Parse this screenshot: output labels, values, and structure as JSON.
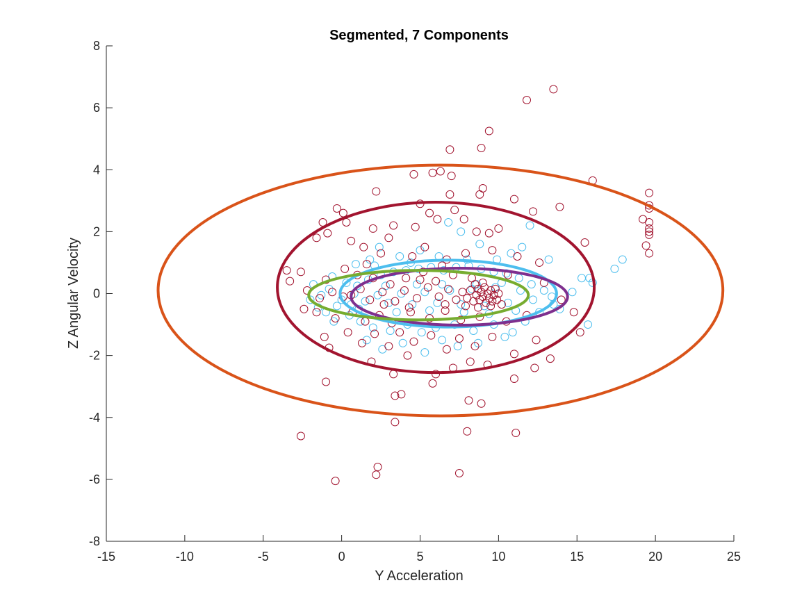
{
  "chart_data": {
    "type": "scatter",
    "title": "Segmented, 7 Components",
    "xlabel": "Y Acceleration",
    "ylabel": "Z Angular Velocity",
    "xlim": [
      -15,
      25
    ],
    "ylim": [
      -8,
      8
    ],
    "xticks": [
      -15,
      -10,
      -5,
      0,
      5,
      10,
      15,
      20,
      25
    ],
    "yticks": [
      -8,
      -6,
      -4,
      -2,
      0,
      2,
      4,
      6,
      8
    ],
    "grid": false,
    "colors": {
      "axis": "#262626",
      "points_dark": "#A2142F",
      "points_light": "#4DBEEE",
      "ellipse_orange": "#D95319",
      "ellipse_crimson": "#A2142F",
      "ellipse_blue": "#4DBEEE",
      "ellipse_purple": "#7E2F8E",
      "ellipse_green": "#77AC30"
    },
    "ellipses": [
      {
        "color": "#D95319",
        "cx": 6.3,
        "cy": 0.1,
        "rx": 18.0,
        "ry": 4.05
      },
      {
        "color": "#A2142F",
        "cx": 6.0,
        "cy": 0.2,
        "rx": 10.1,
        "ry": 2.75
      },
      {
        "color": "#4DBEEE",
        "cx": 6.8,
        "cy": 0.0,
        "rx": 6.9,
        "ry": 1.08
      },
      {
        "color": "#7E2F8E",
        "cx": 7.5,
        "cy": -0.1,
        "rx": 6.9,
        "ry": 0.92
      },
      {
        "color": "#77AC30",
        "cx": 4.9,
        "cy": -0.05,
        "rx": 7.0,
        "ry": 0.8
      }
    ],
    "series": [
      {
        "color": "#A2142F",
        "points": [
          [
            13.5,
            6.6
          ],
          [
            11.8,
            6.25
          ],
          [
            9.4,
            5.25
          ],
          [
            6.9,
            4.65
          ],
          [
            8.9,
            4.7
          ],
          [
            16.0,
            3.65
          ],
          [
            4.6,
            3.85
          ],
          [
            5.8,
            3.9
          ],
          [
            6.3,
            3.95
          ],
          [
            7.0,
            3.8
          ],
          [
            2.2,
            3.3
          ],
          [
            8.8,
            3.2
          ],
          [
            9.0,
            3.4
          ],
          [
            6.9,
            3.2
          ],
          [
            19.6,
            3.25
          ],
          [
            19.6,
            2.85
          ],
          [
            19.6,
            2.75
          ],
          [
            19.6,
            2.3
          ],
          [
            19.6,
            2.1
          ],
          [
            19.6,
            2.0
          ],
          [
            19.6,
            1.9
          ],
          [
            19.6,
            1.3
          ],
          [
            19.4,
            1.55
          ],
          [
            19.2,
            2.4
          ],
          [
            13.9,
            2.8
          ],
          [
            12.2,
            2.65
          ],
          [
            11.0,
            3.05
          ],
          [
            5.0,
            2.9
          ],
          [
            5.6,
            2.6
          ],
          [
            -0.3,
            2.75
          ],
          [
            0.1,
            2.6
          ],
          [
            0.3,
            2.3
          ],
          [
            -1.2,
            2.3
          ],
          [
            -0.9,
            1.95
          ],
          [
            2.0,
            2.1
          ],
          [
            3.3,
            2.2
          ],
          [
            4.7,
            2.15
          ],
          [
            6.1,
            2.4
          ],
          [
            7.2,
            2.7
          ],
          [
            7.8,
            2.4
          ],
          [
            8.6,
            2.0
          ],
          [
            9.4,
            1.95
          ],
          [
            10.0,
            2.1
          ],
          [
            15.5,
            1.65
          ],
          [
            -1.6,
            1.8
          ],
          [
            0.6,
            1.7
          ],
          [
            1.4,
            1.5
          ],
          [
            2.5,
            1.3
          ],
          [
            3.0,
            1.8
          ],
          [
            4.5,
            1.2
          ],
          [
            5.3,
            1.5
          ],
          [
            6.7,
            1.1
          ],
          [
            7.9,
            1.3
          ],
          [
            9.6,
            1.4
          ],
          [
            11.2,
            1.2
          ],
          [
            12.6,
            1.0
          ],
          [
            -3.5,
            0.75
          ],
          [
            -2.6,
            0.7
          ],
          [
            -3.3,
            0.4
          ],
          [
            -1.0,
            0.45
          ],
          [
            0.2,
            0.8
          ],
          [
            1.0,
            0.6
          ],
          [
            2.0,
            0.5
          ],
          [
            3.1,
            0.3
          ],
          [
            4.1,
            0.5
          ],
          [
            5.2,
            0.7
          ],
          [
            6.0,
            0.4
          ],
          [
            7.1,
            0.6
          ],
          [
            8.3,
            0.5
          ],
          [
            10.6,
            0.6
          ],
          [
            12.9,
            0.35
          ],
          [
            14.0,
            -0.2
          ],
          [
            14.8,
            -0.6
          ],
          [
            15.2,
            -1.25
          ],
          [
            -2.2,
            0.1
          ],
          [
            -1.4,
            -0.15
          ],
          [
            -0.6,
            0.05
          ],
          [
            0.1,
            -0.1
          ],
          [
            0.6,
            -0.05
          ],
          [
            1.2,
            0.15
          ],
          [
            1.8,
            -0.2
          ],
          [
            2.6,
            0.05
          ],
          [
            3.4,
            -0.25
          ],
          [
            4.0,
            0.1
          ],
          [
            4.8,
            -0.15
          ],
          [
            5.5,
            0.2
          ],
          [
            6.2,
            -0.1
          ],
          [
            6.8,
            0.15
          ],
          [
            7.3,
            -0.2
          ],
          [
            7.7,
            0.05
          ],
          [
            8.0,
            -0.15
          ],
          [
            8.2,
            0.1
          ],
          [
            8.4,
            -0.25
          ],
          [
            8.6,
            -0.05
          ],
          [
            8.7,
            0.15
          ],
          [
            8.8,
            -0.2
          ],
          [
            8.9,
            0.05
          ],
          [
            9.0,
            -0.1
          ],
          [
            9.1,
            0.2
          ],
          [
            9.2,
            -0.3
          ],
          [
            9.3,
            0.0
          ],
          [
            9.4,
            -0.15
          ],
          [
            9.5,
            0.1
          ],
          [
            9.6,
            -0.25
          ],
          [
            9.7,
            -0.05
          ],
          [
            9.8,
            0.15
          ],
          [
            9.9,
            -0.2
          ],
          [
            10.0,
            0.0
          ],
          [
            8.5,
            0.3
          ],
          [
            9.0,
            0.35
          ],
          [
            9.5,
            -0.4
          ],
          [
            8.7,
            -0.45
          ],
          [
            10.2,
            -0.35
          ],
          [
            7.9,
            -0.4
          ],
          [
            -2.4,
            -0.5
          ],
          [
            -1.6,
            -0.6
          ],
          [
            -0.4,
            -0.8
          ],
          [
            0.7,
            -0.6
          ],
          [
            1.5,
            -0.9
          ],
          [
            2.4,
            -0.7
          ],
          [
            3.2,
            -0.95
          ],
          [
            4.4,
            -0.6
          ],
          [
            5.6,
            -0.8
          ],
          [
            6.6,
            -0.55
          ],
          [
            7.6,
            -0.85
          ],
          [
            8.8,
            -0.75
          ],
          [
            10.5,
            -0.9
          ],
          [
            11.8,
            -0.7
          ],
          [
            -1.1,
            -1.4
          ],
          [
            -0.8,
            -1.75
          ],
          [
            0.4,
            -1.25
          ],
          [
            1.3,
            -1.6
          ],
          [
            2.1,
            -1.3
          ],
          [
            3.0,
            -1.7
          ],
          [
            3.7,
            -1.25
          ],
          [
            4.6,
            -1.55
          ],
          [
            5.7,
            -1.35
          ],
          [
            6.7,
            -1.8
          ],
          [
            7.5,
            -1.45
          ],
          [
            8.5,
            -1.7
          ],
          [
            9.6,
            -1.4
          ],
          [
            11.0,
            -1.95
          ],
          [
            12.4,
            -1.5
          ],
          [
            13.3,
            -2.1
          ],
          [
            1.9,
            -2.2
          ],
          [
            3.3,
            -2.6
          ],
          [
            4.2,
            -2.0
          ],
          [
            6.0,
            -2.6
          ],
          [
            7.1,
            -2.4
          ],
          [
            8.2,
            -2.2
          ],
          [
            9.3,
            -2.3
          ],
          [
            11.0,
            -2.75
          ],
          [
            12.3,
            -2.4
          ],
          [
            5.8,
            -2.9
          ],
          [
            -1.0,
            -2.85
          ],
          [
            3.4,
            -3.3
          ],
          [
            3.8,
            -3.25
          ],
          [
            8.1,
            -3.45
          ],
          [
            8.9,
            -3.55
          ],
          [
            3.4,
            -4.15
          ],
          [
            8.0,
            -4.45
          ],
          [
            11.1,
            -4.5
          ],
          [
            -2.6,
            -4.6
          ],
          [
            2.3,
            -5.6
          ],
          [
            2.2,
            -5.85
          ],
          [
            7.5,
            -5.8
          ],
          [
            -0.4,
            -6.05
          ],
          [
            1.6,
            0.95
          ],
          [
            6.4,
            0.9
          ],
          [
            2.7,
            -0.35
          ],
          [
            5.0,
            0.45
          ],
          [
            4.3,
            -0.45
          ],
          [
            6.6,
            -0.35
          ]
        ]
      },
      {
        "color": "#4DBEEE",
        "points": [
          [
            12.0,
            2.2
          ],
          [
            11.5,
            1.5
          ],
          [
            10.8,
            1.3
          ],
          [
            13.2,
            1.1
          ],
          [
            15.3,
            0.5
          ],
          [
            15.8,
            0.5
          ],
          [
            16.0,
            0.35
          ],
          [
            17.9,
            1.1
          ],
          [
            17.4,
            0.8
          ],
          [
            14.7,
            0.05
          ],
          [
            15.7,
            -1.0
          ],
          [
            13.9,
            -0.5
          ],
          [
            6.8,
            2.3
          ],
          [
            7.6,
            2.0
          ],
          [
            8.8,
            1.6
          ],
          [
            5.0,
            1.4
          ],
          [
            3.7,
            1.2
          ],
          [
            2.4,
            1.5
          ],
          [
            1.8,
            1.1
          ],
          [
            0.9,
            0.95
          ],
          [
            -0.6,
            0.55
          ],
          [
            -1.8,
            0.3
          ],
          [
            -2.0,
            -0.2
          ],
          [
            -1.5,
            -0.45
          ],
          [
            -1.0,
            -0.6
          ],
          [
            -0.3,
            -0.4
          ],
          [
            0.5,
            -0.7
          ],
          [
            1.2,
            -0.9
          ],
          [
            2.0,
            -1.1
          ],
          [
            3.1,
            -1.2
          ],
          [
            4.2,
            -1.0
          ],
          [
            5.1,
            -1.25
          ],
          [
            6.0,
            -1.1
          ],
          [
            7.2,
            -1.0
          ],
          [
            8.4,
            -1.2
          ],
          [
            9.7,
            -1.0
          ],
          [
            10.9,
            -1.25
          ],
          [
            11.7,
            -0.9
          ],
          [
            12.6,
            -0.6
          ],
          [
            13.5,
            -0.35
          ],
          [
            0.3,
            0.35
          ],
          [
            1.0,
            0.25
          ],
          [
            1.7,
            0.45
          ],
          [
            2.5,
            0.6
          ],
          [
            3.3,
            0.7
          ],
          [
            4.1,
            0.75
          ],
          [
            4.9,
            0.8
          ],
          [
            5.7,
            0.85
          ],
          [
            6.5,
            0.75
          ],
          [
            7.3,
            0.85
          ],
          [
            8.1,
            0.9
          ],
          [
            8.9,
            0.8
          ],
          [
            9.7,
            0.7
          ],
          [
            10.5,
            0.65
          ],
          [
            11.3,
            0.5
          ],
          [
            12.1,
            0.3
          ],
          [
            12.9,
            0.1
          ],
          [
            13.4,
            -0.1
          ],
          [
            -0.8,
            0.15
          ],
          [
            -1.3,
            -0.05
          ],
          [
            0.0,
            -0.2
          ],
          [
            0.8,
            0.0
          ],
          [
            1.5,
            -0.25
          ],
          [
            2.3,
            -0.05
          ],
          [
            3.0,
            -0.3
          ],
          [
            3.8,
            0.0
          ],
          [
            4.5,
            -0.35
          ],
          [
            5.3,
            0.05
          ],
          [
            6.1,
            -0.3
          ],
          [
            6.9,
            0.1
          ],
          [
            7.6,
            -0.35
          ],
          [
            8.3,
            0.15
          ],
          [
            9.1,
            -0.4
          ],
          [
            9.8,
            0.2
          ],
          [
            10.6,
            -0.3
          ],
          [
            11.4,
            0.1
          ],
          [
            12.2,
            -0.2
          ],
          [
            0.6,
            -0.35
          ],
          [
            2.8,
            0.25
          ],
          [
            4.8,
            0.3
          ],
          [
            6.4,
            0.3
          ],
          [
            8.6,
            0.3
          ],
          [
            10.2,
            0.35
          ],
          [
            1.1,
            -0.5
          ],
          [
            3.5,
            -0.6
          ],
          [
            5.6,
            -0.55
          ],
          [
            7.8,
            -0.6
          ],
          [
            9.4,
            -0.65
          ],
          [
            11.1,
            -0.55
          ],
          [
            2.1,
            0.9
          ],
          [
            4.4,
            1.0
          ],
          [
            6.2,
            1.2
          ],
          [
            8.0,
            1.1
          ],
          [
            9.9,
            1.1
          ],
          [
            -0.5,
            -0.9
          ],
          [
            1.6,
            -1.5
          ],
          [
            3.9,
            -1.6
          ],
          [
            6.4,
            -1.5
          ],
          [
            8.7,
            -1.6
          ],
          [
            10.4,
            -1.4
          ],
          [
            2.6,
            -1.8
          ],
          [
            5.3,
            -1.9
          ],
          [
            7.4,
            -1.7
          ]
        ]
      }
    ]
  }
}
